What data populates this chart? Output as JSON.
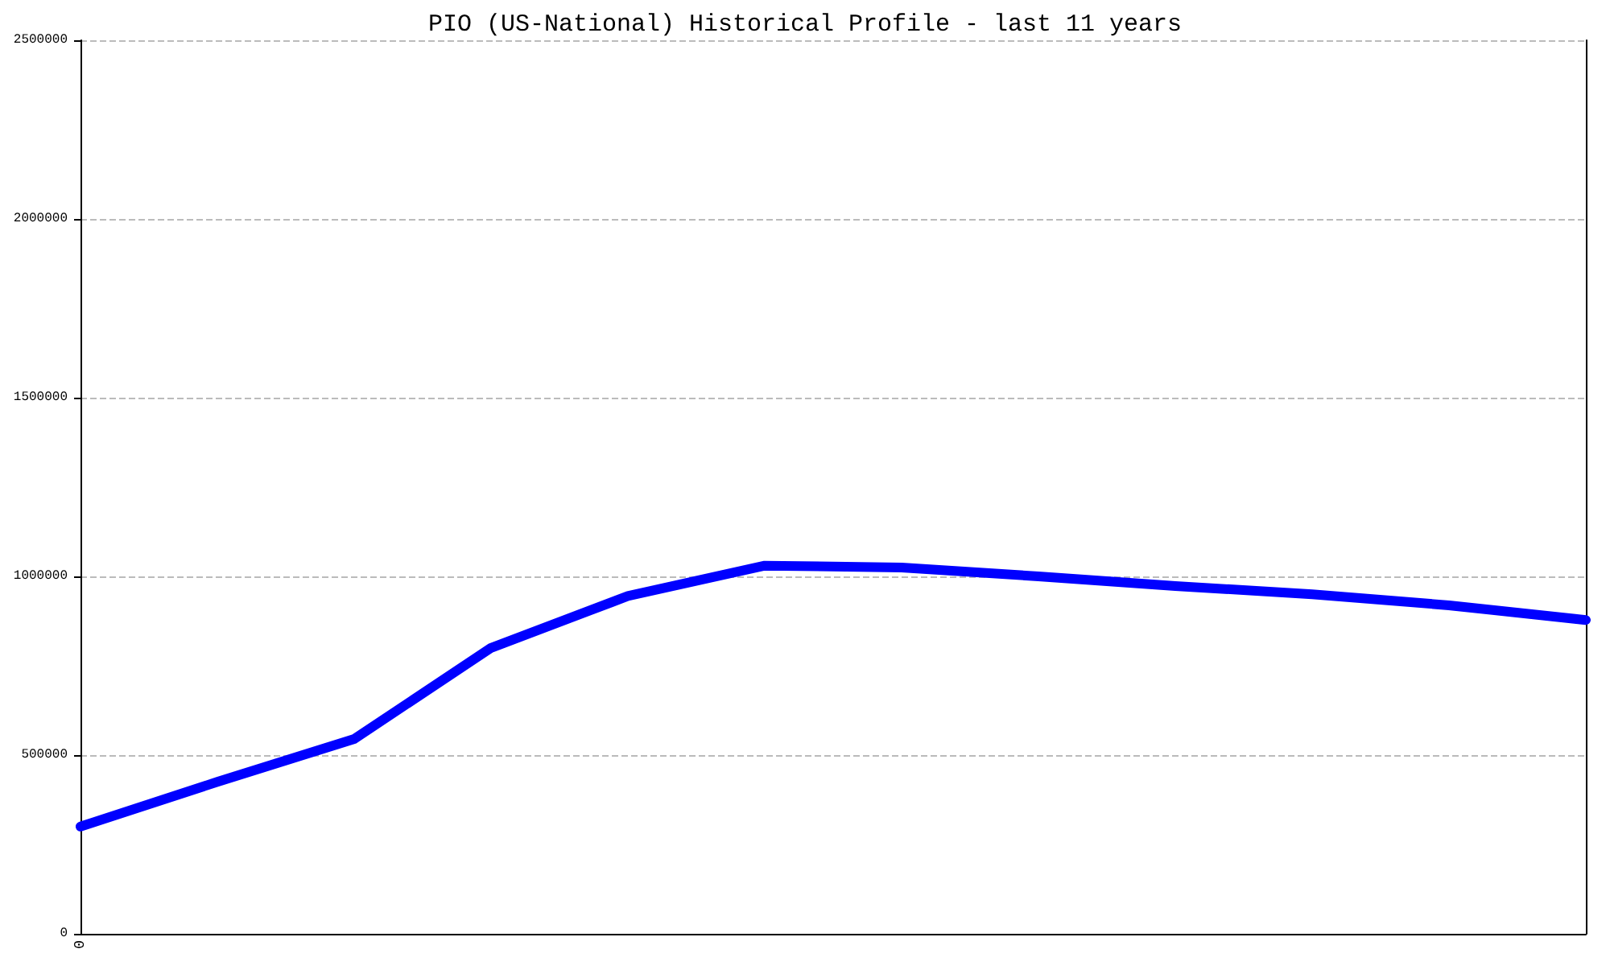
{
  "chart_data": {
    "type": "line",
    "title": "PIO (US-National) Historical Profile - last 11 years",
    "categories": [
      "0",
      null,
      null,
      null,
      null,
      null,
      null,
      null,
      null,
      null,
      null,
      null
    ],
    "series": [
      {
        "color": "#0000ff",
        "values": [
          300000,
          425000,
          545000,
          800000,
          945000,
          1030000,
          1025000,
          1000000,
          973000,
          950000,
          919000,
          878000
        ]
      }
    ],
    "ylim": [
      0,
      2500000
    ],
    "yticks": [
      0,
      500000,
      1000000,
      1500000,
      2000000,
      2500000
    ],
    "grid": "y",
    "marker": "none",
    "line_style": "solid"
  }
}
